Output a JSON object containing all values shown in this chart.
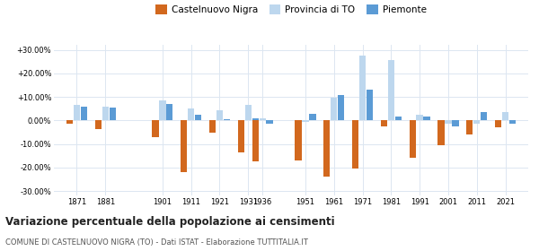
{
  "years": [
    1871,
    1881,
    1901,
    1911,
    1921,
    1931,
    1936,
    1951,
    1961,
    1971,
    1981,
    1991,
    2001,
    2011,
    2021
  ],
  "castelnuovo": [
    -1.5,
    -3.5,
    -7.0,
    -22.0,
    -5.0,
    -13.5,
    -17.5,
    -17.0,
    -24.0,
    -20.5,
    -2.5,
    -16.0,
    -10.5,
    -6.0,
    -3.0
  ],
  "provincia": [
    6.5,
    6.0,
    8.5,
    5.0,
    4.5,
    6.5,
    1.0,
    -0.5,
    9.5,
    27.5,
    25.5,
    2.5,
    -1.5,
    -1.5,
    3.5
  ],
  "piemonte": [
    6.0,
    5.5,
    7.0,
    2.5,
    0.5,
    1.0,
    -1.5,
    3.0,
    11.0,
    13.0,
    1.5,
    1.5,
    -2.5,
    3.5,
    -1.5
  ],
  "bar_width": 2.5,
  "color_castelnuovo": "#d2681e",
  "color_provincia": "#bdd7ee",
  "color_piemonte": "#5b9bd5",
  "title": "Variazione percentuale della popolazione ai censimenti",
  "subtitle": "COMUNE DI CASTELNUOVO NIGRA (TO) - Dati ISTAT - Elaborazione TUTTITALIA.IT",
  "ylim": [
    -32,
    32
  ],
  "yticks": [
    -30,
    -20,
    -10,
    0,
    10,
    20,
    30
  ],
  "ytick_labels": [
    "-30.00%",
    "-20.00%",
    "-10.00%",
    "0.00%",
    "+10.00%",
    "+20.00%",
    "+30.00%"
  ],
  "background_color": "#ffffff",
  "grid_color": "#dce6f1",
  "legend_items": [
    "Castelnuovo Nigra",
    "Provincia di TO",
    "Piemonte"
  ]
}
